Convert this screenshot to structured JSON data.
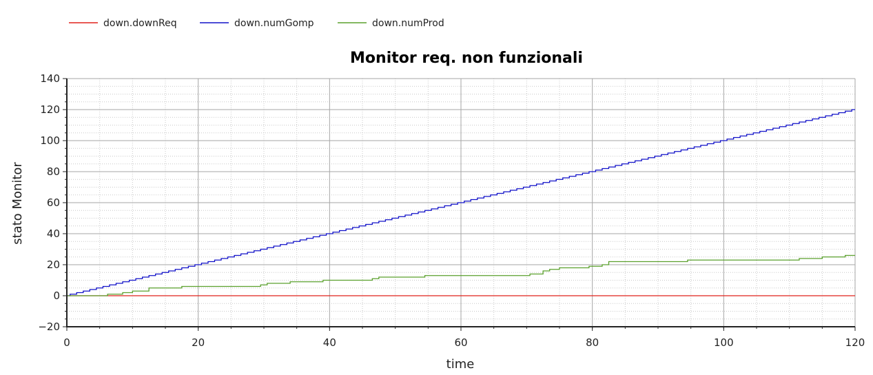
{
  "chart_data": {
    "type": "line",
    "title": "Monitor req. non funzionali",
    "xlabel": "time",
    "ylabel": "stato Monitor",
    "xlim": [
      0,
      120
    ],
    "ylim": [
      -20,
      140
    ],
    "x_ticks": [
      0,
      20,
      40,
      60,
      80,
      100,
      120
    ],
    "y_ticks": [
      -20,
      0,
      20,
      40,
      60,
      80,
      100,
      120,
      140
    ],
    "x_tick_labels": [
      "0",
      "20",
      "40",
      "60",
      "80",
      "100",
      "120"
    ],
    "y_tick_labels": [
      "−20",
      "0",
      "20",
      "40",
      "60",
      "80",
      "100",
      "120",
      "140"
    ],
    "grid": true,
    "legend_position": "top-left",
    "series": [
      {
        "name": "down.downReq",
        "color": "#e0201b",
        "step": true,
        "points": [
          [
            0,
            0
          ],
          [
            120,
            0
          ]
        ]
      },
      {
        "name": "down.numGomp",
        "color": "#1010c8",
        "step": true,
        "points": [
          [
            0,
            0
          ],
          [
            120,
            120
          ]
        ]
      },
      {
        "name": "down.numProd",
        "color": "#5aa02c",
        "step": true,
        "points": [
          [
            0,
            0
          ],
          [
            6.2,
            1
          ],
          [
            8.5,
            2
          ],
          [
            10,
            3
          ],
          [
            12.5,
            5
          ],
          [
            17.5,
            6
          ],
          [
            29.5,
            7
          ],
          [
            30.5,
            8
          ],
          [
            34,
            9
          ],
          [
            39,
            10
          ],
          [
            46.5,
            11
          ],
          [
            47.5,
            12
          ],
          [
            54.5,
            13
          ],
          [
            70.5,
            14
          ],
          [
            72.5,
            16
          ],
          [
            73.5,
            17
          ],
          [
            75,
            18
          ],
          [
            79.5,
            19
          ],
          [
            81.5,
            20
          ],
          [
            82.5,
            22
          ],
          [
            94.5,
            23
          ],
          [
            111.5,
            24
          ],
          [
            115,
            25
          ],
          [
            118.5,
            26
          ],
          [
            120,
            26
          ]
        ]
      }
    ]
  }
}
